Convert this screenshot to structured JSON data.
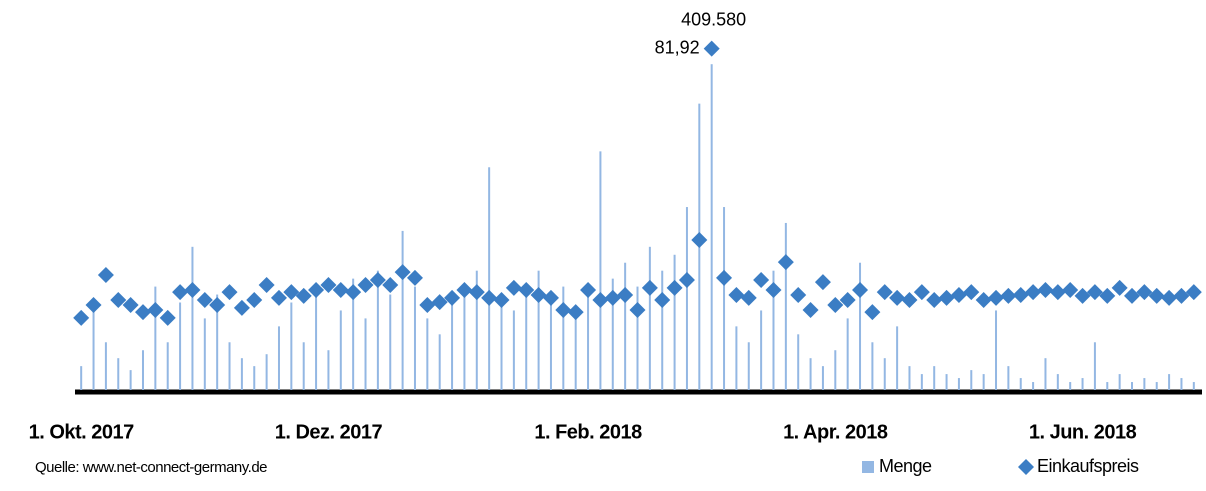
{
  "chart_data": {
    "type": "bar_scatter",
    "source": "Quelle: www.net-connect-germany.de",
    "categories": [
      "1. Okt. 2017",
      null,
      null,
      null,
      null,
      null,
      null,
      null,
      null,
      null,
      null,
      null,
      null,
      null,
      null,
      null,
      null,
      null,
      null,
      null,
      "1. Dez. 2017",
      null,
      null,
      null,
      null,
      null,
      null,
      null,
      null,
      null,
      null,
      null,
      null,
      null,
      null,
      null,
      null,
      null,
      null,
      null,
      null,
      "1. Feb. 2018",
      null,
      null,
      null,
      null,
      null,
      null,
      null,
      null,
      null,
      null,
      null,
      null,
      null,
      null,
      null,
      null,
      null,
      null,
      null,
      "1. Apr. 2018",
      null,
      null,
      null,
      null,
      null,
      null,
      null,
      null,
      null,
      null,
      null,
      null,
      null,
      null,
      null,
      null,
      null,
      null,
      null,
      "1. Jun. 2018",
      null,
      null,
      null,
      null,
      null,
      null,
      null,
      null,
      null
    ],
    "ylim": [
      0,
      440000
    ],
    "y2lim": [
      0,
      84
    ],
    "series": [
      {
        "name": "Menge",
        "type": "bar",
        "color": "#93b7e3",
        "values": [
          30000,
          110000,
          60000,
          40000,
          25000,
          50000,
          130000,
          60000,
          110000,
          180000,
          90000,
          120000,
          60000,
          40000,
          30000,
          45000,
          80000,
          110000,
          60000,
          130000,
          50000,
          100000,
          140000,
          90000,
          150000,
          120000,
          200000,
          130000,
          90000,
          70000,
          110000,
          130000,
          150000,
          280000,
          120000,
          100000,
          130000,
          150000,
          110000,
          130000,
          90000,
          120000,
          300000,
          140000,
          160000,
          130000,
          180000,
          150000,
          170000,
          230000,
          360000,
          409580,
          230000,
          80000,
          60000,
          100000,
          150000,
          210000,
          70000,
          40000,
          30000,
          50000,
          90000,
          160000,
          60000,
          40000,
          80000,
          30000,
          20000,
          30000,
          20000,
          15000,
          25000,
          20000,
          100000,
          30000,
          15000,
          10000,
          40000,
          20000,
          10000,
          15000,
          60000,
          10000,
          20000,
          10000,
          15000,
          10000,
          20000,
          15000,
          10000
        ],
        "value_labels": [
          null,
          null,
          null,
          null,
          null,
          null,
          null,
          null,
          null,
          null,
          null,
          null,
          null,
          null,
          null,
          null,
          null,
          null,
          null,
          null,
          null,
          null,
          null,
          null,
          null,
          null,
          null,
          null,
          null,
          null,
          null,
          null,
          null,
          null,
          null,
          null,
          null,
          null,
          null,
          null,
          null,
          null,
          null,
          null,
          null,
          null,
          null,
          null,
          null,
          null,
          null,
          "409.580",
          null,
          null,
          null,
          null,
          null,
          null,
          null,
          null,
          null,
          null,
          null,
          null,
          null,
          null,
          null,
          null,
          null,
          null,
          null,
          null,
          null,
          null,
          null,
          null,
          null,
          null,
          null,
          null,
          null,
          null,
          null,
          null,
          null,
          null,
          null,
          null,
          null,
          null,
          null
        ]
      },
      {
        "name": "Einkaufspreis",
        "type": "scatter",
        "axis": "y2",
        "color": "#3b7dc4",
        "values": [
          17.3,
          20.4,
          27.6,
          21.6,
          20.4,
          18.7,
          19.2,
          17.3,
          23.5,
          24.0,
          21.6,
          20.4,
          23.5,
          19.7,
          21.6,
          25.2,
          22.1,
          23.5,
          22.6,
          24.0,
          25.2,
          24.0,
          23.5,
          25.2,
          26.4,
          25.2,
          28.3,
          26.9,
          20.4,
          21.1,
          22.1,
          24.0,
          23.5,
          22.1,
          21.6,
          24.5,
          24.0,
          22.8,
          22.1,
          19.2,
          18.7,
          24.0,
          21.6,
          22.1,
          22.8,
          19.2,
          24.5,
          21.6,
          24.5,
          26.4,
          36.0,
          81.92,
          26.9,
          22.8,
          22.1,
          26.4,
          24.0,
          30.7,
          22.8,
          19.2,
          25.9,
          20.4,
          21.6,
          24.0,
          18.7,
          23.5,
          22.1,
          21.6,
          23.5,
          21.6,
          22.1,
          22.8,
          23.5,
          21.6,
          22.1,
          22.6,
          22.8,
          23.5,
          24.0,
          23.5,
          24.0,
          22.6,
          23.5,
          22.6,
          24.5,
          22.6,
          23.5,
          22.6,
          22.1,
          22.6,
          23.5
        ],
        "value_labels": [
          null,
          null,
          null,
          null,
          null,
          null,
          null,
          null,
          null,
          null,
          null,
          null,
          null,
          null,
          null,
          null,
          null,
          null,
          null,
          null,
          null,
          null,
          null,
          null,
          null,
          null,
          null,
          null,
          null,
          null,
          null,
          null,
          null,
          null,
          null,
          null,
          null,
          null,
          null,
          null,
          null,
          null,
          null,
          null,
          null,
          null,
          null,
          null,
          null,
          null,
          null,
          "81,92",
          null,
          null,
          null,
          null,
          null,
          null,
          null,
          null,
          null,
          null,
          null,
          null,
          null,
          null,
          null,
          null,
          null,
          null,
          null,
          null,
          null,
          null,
          null,
          null,
          null,
          null,
          null,
          null,
          null,
          null,
          null,
          null,
          null,
          null,
          null,
          null,
          null,
          null,
          null
        ]
      }
    ]
  }
}
